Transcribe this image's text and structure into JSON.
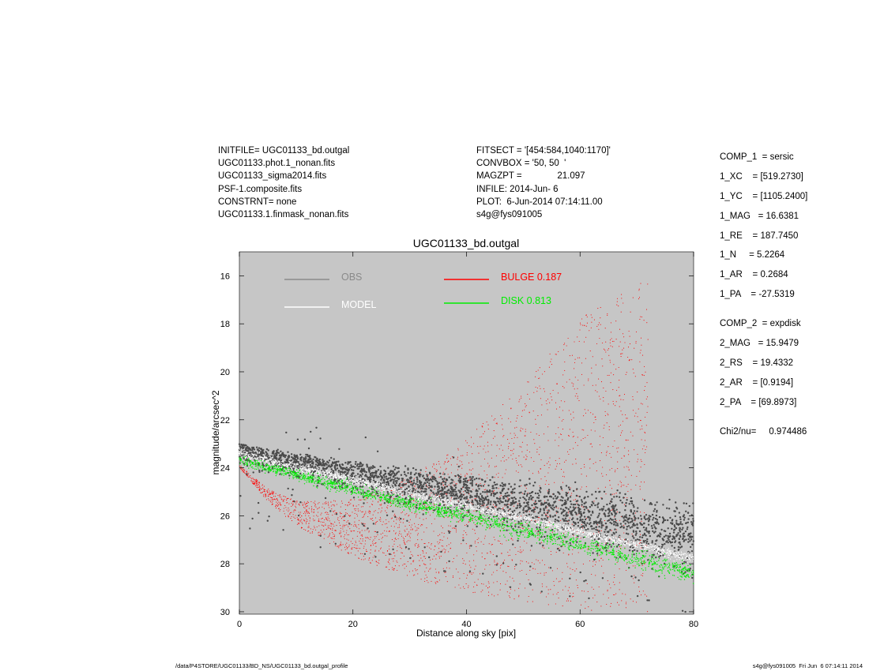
{
  "header_left": [
    "INITFILE= UGC01133_bd.outgal",
    "UGC01133.phot.1_nonan.fits",
    "UGC01133_sigma2014.fits",
    "PSF-1.composite.fits",
    "CONSTRNT= none",
    "UGC01133.1.finmask_nonan.fits"
  ],
  "header_mid": [
    "FITSECT = '[454:584,1040:1170]'",
    "CONVBOX = '50, 50  '",
    "MAGZPT =              21.097",
    "INFILE: 2014-Jun- 6",
    "PLOT:  6-Jun-2014 07:14:11.00",
    "s4g@fys091005"
  ],
  "components": {
    "comp1": [
      "COMP_1  = sersic",
      "1_XC    = [519.2730]",
      "1_YC    = [1105.2400]",
      "1_MAG   = 16.6381",
      "1_RE    = 187.7450",
      "1_N     = 5.2264",
      "1_AR    = 0.2684",
      "1_PA    = -27.5319"
    ],
    "comp2": [
      "COMP_2  = expdisk",
      "2_MAG   = 15.9479",
      "2_RS    = 19.4332",
      "2_AR    = [0.9194]",
      "2_PA    = [69.8973]"
    ],
    "chi2": "Chi2/nu=     0.974486"
  },
  "footer": {
    "left": "/data/P4STORE/UGC01133/BD_NS/UGC01133_bd.outgal_profile",
    "right": "s4g@fys091005  Fri Jun  6 07:14:11 2014"
  },
  "colors": {
    "plot_background": "#c6c6c6",
    "obs": "#4a4a4a",
    "model": "#ffffff",
    "bulge": "#ff0000",
    "disk": "#00ee00",
    "obs_legend": "#8a8a8a"
  },
  "chart_data": {
    "type": "scatter",
    "title": "UGC01133_bd.outgal",
    "xlabel": "Distance along sky [pix]",
    "ylabel": "magnitude/arcsec^2",
    "xlim": [
      0,
      80
    ],
    "ylim": [
      30.1,
      15.0
    ],
    "y_inverted": true,
    "xticks": [
      0,
      20,
      40,
      60,
      80
    ],
    "yticks": [
      16,
      18,
      20,
      22,
      24,
      26,
      28,
      30
    ],
    "grid": false,
    "legend": [
      {
        "label": "OBS",
        "color": "#8a8a8a"
      },
      {
        "label": "MODEL",
        "color": "#ffffff"
      },
      {
        "label": "BULGE  0.187",
        "color": "#ff0000"
      },
      {
        "label": "DISK  0.813",
        "color": "#00ee00"
      }
    ],
    "series": [
      {
        "name": "OBS",
        "x": [
          0,
          10,
          20,
          30,
          40,
          50,
          60,
          70,
          80
        ],
        "y": [
          23.0,
          23.6,
          24.1,
          24.6,
          25.1,
          25.6,
          26.1,
          26.6,
          27.1
        ]
      },
      {
        "name": "MODEL",
        "x": [
          0,
          10,
          20,
          30,
          40,
          50,
          60,
          70,
          80
        ],
        "y": [
          23.4,
          24.0,
          24.5,
          25.1,
          25.6,
          26.1,
          26.7,
          27.2,
          27.8
        ]
      },
      {
        "name": "BULGE  0.187",
        "x": [
          0,
          5,
          10,
          20,
          30,
          40,
          50,
          60,
          65
        ],
        "y": [
          24.0,
          25.4,
          26.4,
          27.7,
          28.6,
          29.2,
          29.6,
          29.9,
          30.0
        ]
      },
      {
        "name": "DISK  0.813",
        "x": [
          0,
          10,
          20,
          30,
          40,
          50,
          60,
          70,
          80
        ],
        "y": [
          23.7,
          24.3,
          24.9,
          25.5,
          26.0,
          26.6,
          27.2,
          27.8,
          28.4
        ]
      }
    ]
  }
}
